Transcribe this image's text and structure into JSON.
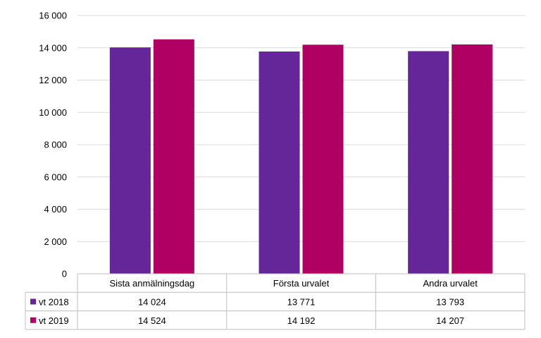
{
  "chart_data": {
    "type": "bar",
    "categories": [
      "Sista anmälningsdag",
      "Första urvalet",
      "Andra urvalet"
    ],
    "series": [
      {
        "name": "vt 2018",
        "values": [
          14024,
          13771,
          13793
        ],
        "labels": [
          "14 024",
          "13 771",
          "13 793"
        ],
        "color": "#65269a"
      },
      {
        "name": "vt 2019",
        "values": [
          14524,
          14192,
          14207
        ],
        "labels": [
          "14 524",
          "14 192",
          "14 207"
        ],
        "color": "#b10063"
      }
    ],
    "ylim": [
      0,
      16000
    ],
    "yticks": [
      0,
      2000,
      4000,
      6000,
      8000,
      10000,
      12000,
      14000,
      16000
    ],
    "ytick_labels": [
      "0",
      "2 000",
      "4 000",
      "6 000",
      "8 000",
      "10 000",
      "12 000",
      "14 000",
      "16 000"
    ],
    "grid": true,
    "legend": "data-table",
    "title": "",
    "xlabel": "",
    "ylabel": ""
  }
}
